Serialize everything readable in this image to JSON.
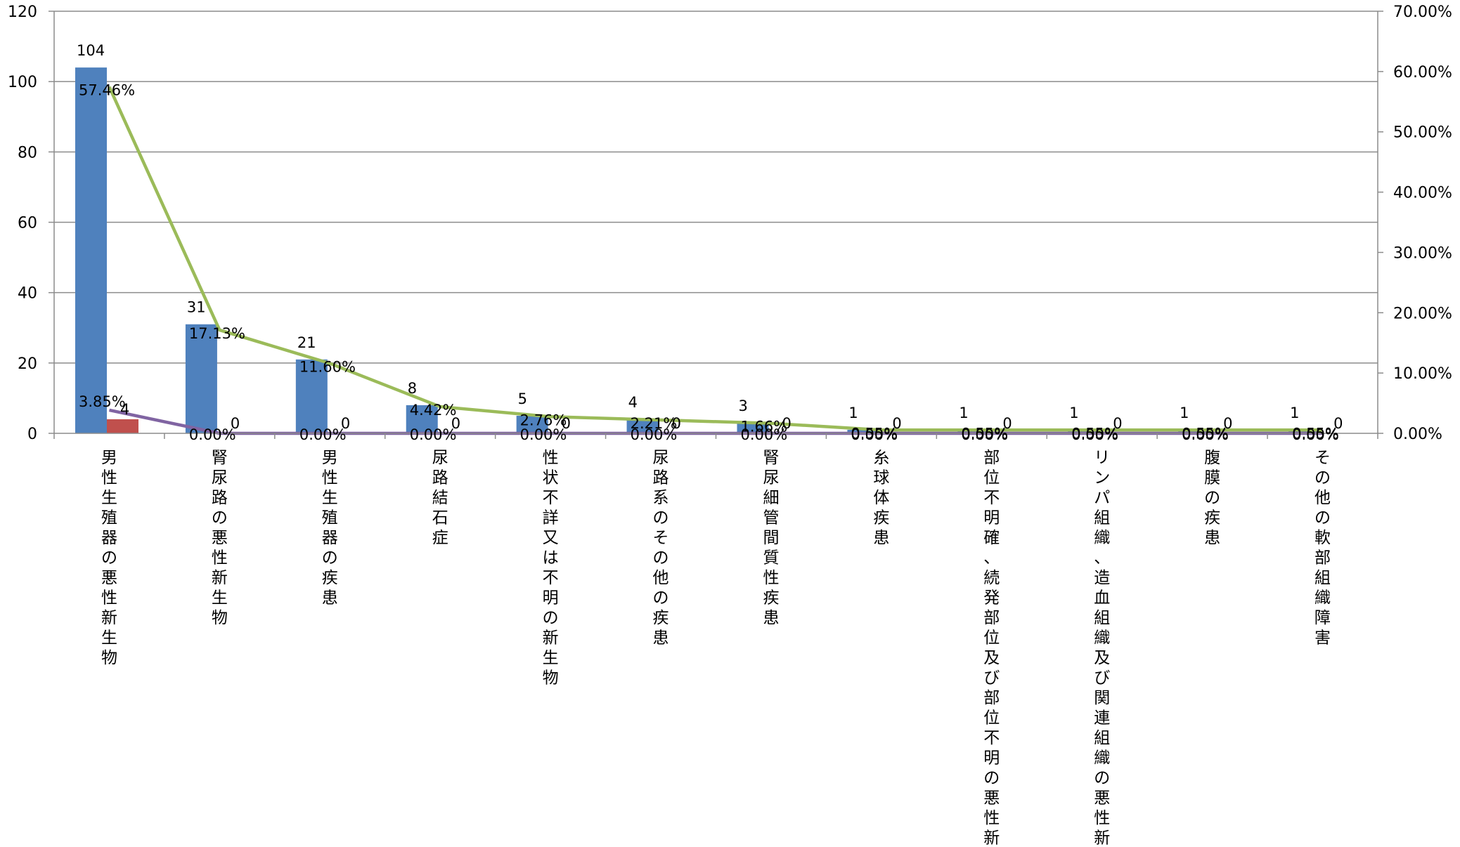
{
  "chart_data": {
    "type": "bar",
    "categories": [
      "男性生殖器の悪性新生物",
      "腎尿路の悪性新生物",
      "男性生殖器の疾患",
      "尿路結石症",
      "性状不詳又は不明の新生物",
      "尿路系のその他の疾患",
      "腎尿細管間質性疾患",
      "糸球体疾患",
      "部位不明確、続発部位及び部位不明の悪性新生物",
      "リンパ組織、造血組織及び関連組織の悪性新生物",
      "腹膜の疾患",
      "その他の軟部組織障害"
    ],
    "series": [
      {
        "values": [
          104,
          31,
          21,
          8,
          5,
          4,
          3,
          1,
          1,
          1,
          1,
          1
        ],
        "value_labels": [
          "104",
          "31",
          "21",
          "8",
          "5",
          "4",
          "3",
          "1",
          "1",
          "1",
          "1",
          "1"
        ],
        "color": "#4f81bd",
        "kind": "bar",
        "axis": "left"
      },
      {
        "values": [
          4,
          0,
          0,
          0,
          0,
          0,
          0,
          0,
          0,
          0,
          0,
          0
        ],
        "value_labels": [
          "4",
          "0",
          "0",
          "0",
          "0",
          "0",
          "0",
          "0",
          "0",
          "0",
          "0",
          "0"
        ],
        "color": "#c0504d",
        "kind": "bar",
        "axis": "left"
      },
      {
        "values": [
          57.46,
          17.13,
          11.6,
          4.42,
          2.76,
          2.21,
          1.66,
          0.55,
          0.55,
          0.55,
          0.55,
          0.55
        ],
        "value_labels": [
          "57.46%",
          "17.13%",
          "11.60%",
          "4.42%",
          "2.76%",
          "2.21%",
          "1.66%",
          "0.55%",
          "0.55%",
          "0.55%",
          "0.55%",
          "0.55%"
        ],
        "color": "#9bbb59",
        "kind": "line",
        "axis": "right"
      },
      {
        "values": [
          3.85,
          0,
          0,
          0,
          0,
          0,
          0,
          0,
          0,
          0,
          0,
          0
        ],
        "value_labels": [
          "3.85%",
          "0.00%",
          "0.00%",
          "0.00%",
          "0.00%",
          "0.00%",
          "0.00%",
          "0.00%",
          "0.00%",
          "0.00%",
          "0.00%",
          "0.00%"
        ],
        "color": "#8064a2",
        "kind": "line",
        "axis": "right"
      }
    ],
    "y_left": {
      "lim": [
        0,
        120
      ],
      "ticks": [
        "0",
        "20",
        "40",
        "60",
        "80",
        "100",
        "120"
      ]
    },
    "y_right": {
      "lim": [
        0,
        70
      ],
      "ticks": [
        "0.00%",
        "10.00%",
        "20.00%",
        "30.00%",
        "40.00%",
        "50.00%",
        "60.00%",
        "70.00%"
      ]
    },
    "grid": true,
    "legend": "none"
  }
}
